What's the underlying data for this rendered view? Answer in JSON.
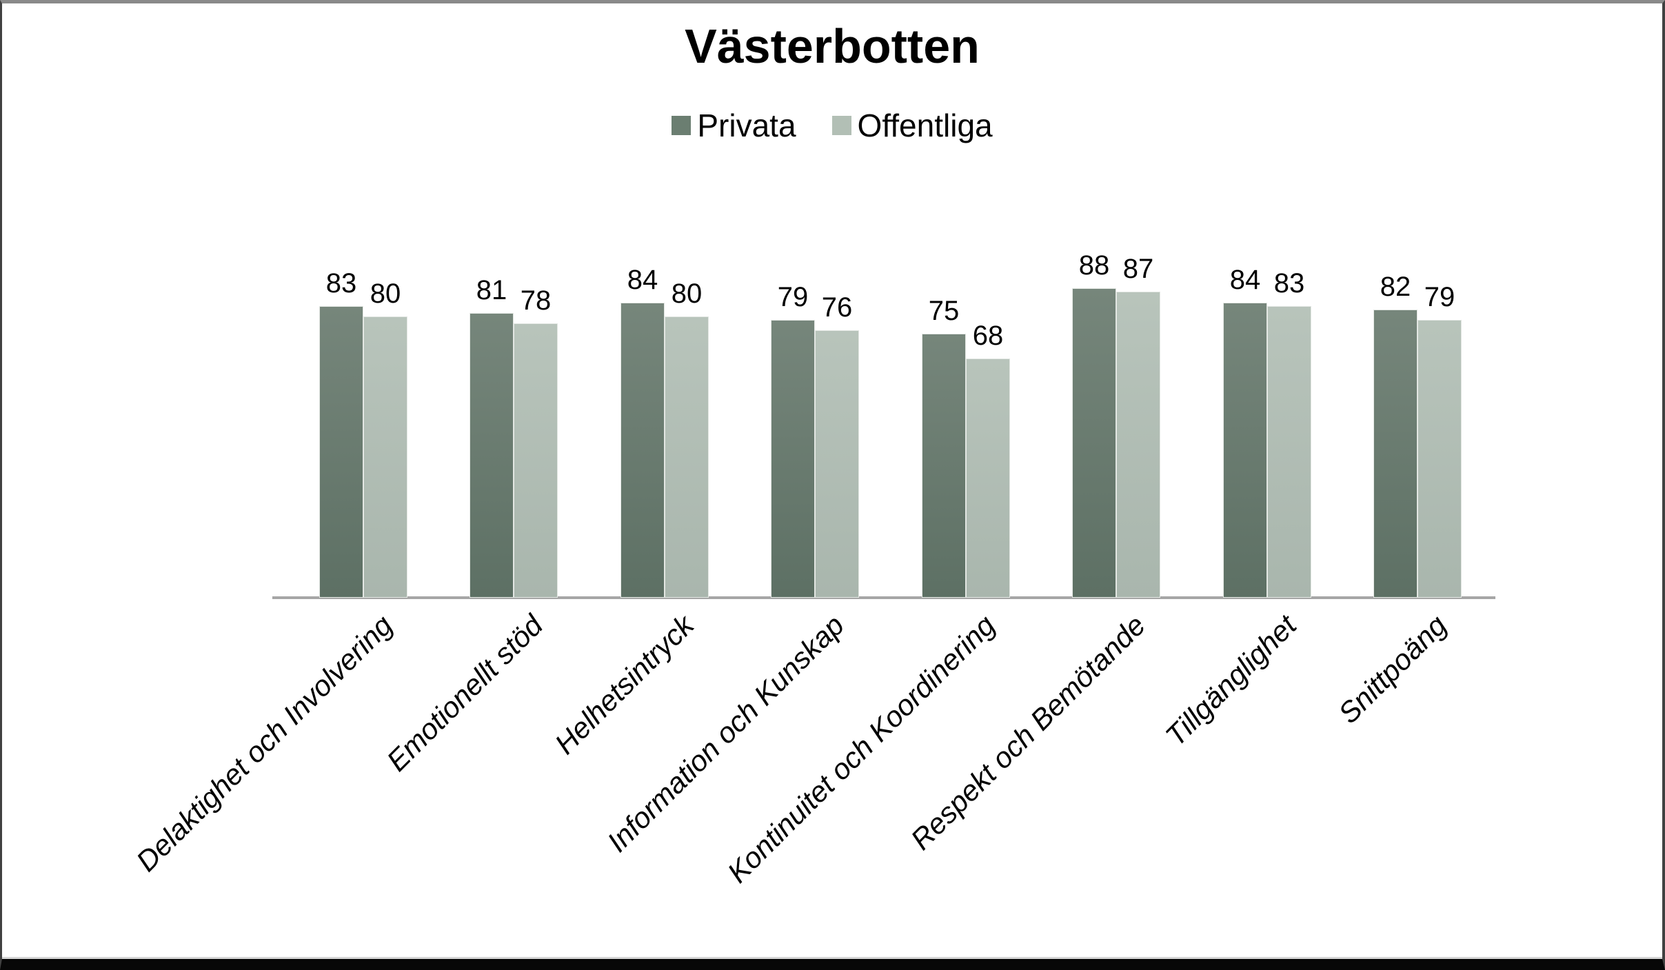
{
  "title": "Västerbotten",
  "chart_data": {
    "type": "bar",
    "title": "Västerbotten",
    "categories": [
      "Delaktighet och Involvering",
      "Emotionellt stöd",
      "Helhetsintryck",
      "Information och Kunskap",
      "Kontinuitet och Koordinering",
      "Respekt och Bemötande",
      "Tillgänglighet",
      "Snittpoäng"
    ],
    "series": [
      {
        "name": "Privata",
        "values": [
          83,
          81,
          84,
          79,
          75,
          88,
          84,
          82
        ],
        "color_top": "#76867b",
        "color_bottom": "#5d7064",
        "legend_color": "#6b7e71"
      },
      {
        "name": "Offentliga",
        "values": [
          80,
          78,
          80,
          76,
          68,
          87,
          83,
          79
        ],
        "color_top": "#b8c4bb",
        "color_bottom": "#a9b6ad",
        "legend_color": "#b2bfb5"
      }
    ],
    "ylim": [
      0,
      100
    ],
    "grid": false,
    "value_labels": true,
    "legend_position": "top",
    "axis_line_color": "#a6a6a6"
  }
}
